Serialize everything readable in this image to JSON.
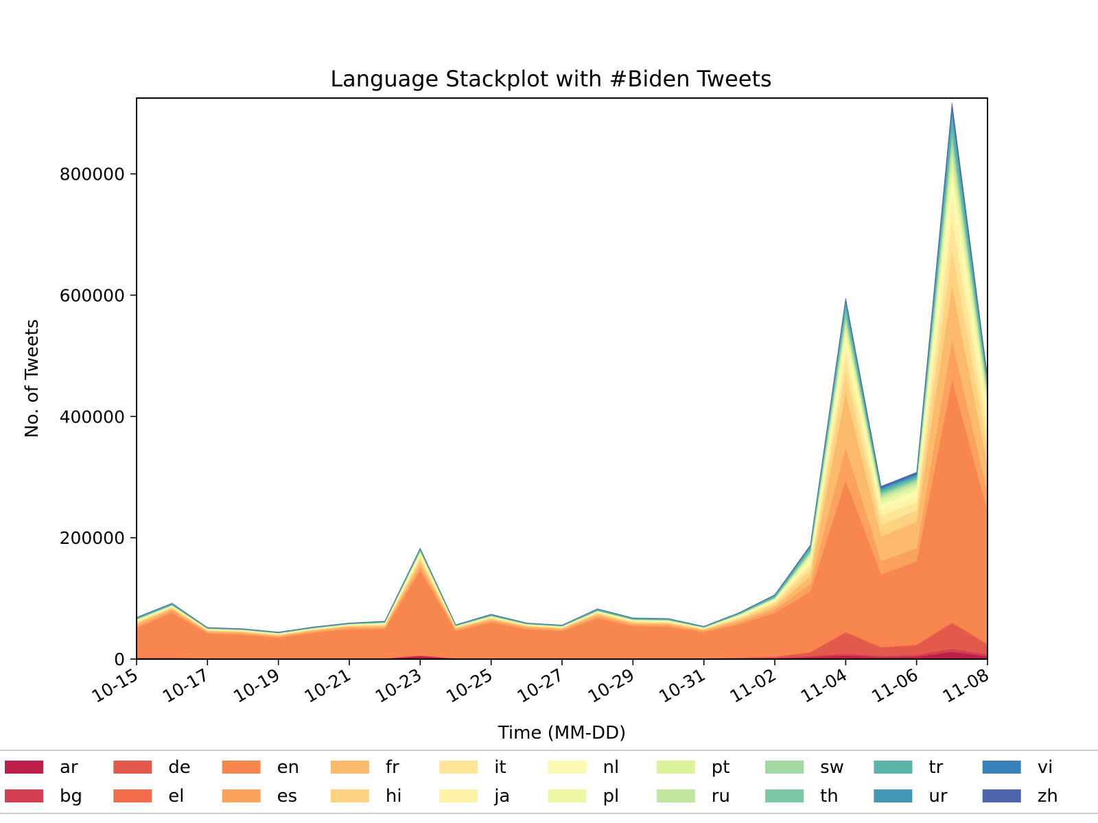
{
  "chart_data": {
    "type": "area",
    "stacked": true,
    "title": "Language Stackplot with #Biden Tweets",
    "xlabel": "Time (MM-DD)",
    "ylabel": "No. of Tweets",
    "x": [
      "10-15",
      "10-16",
      "10-17",
      "10-18",
      "10-19",
      "10-20",
      "10-21",
      "10-22",
      "10-23",
      "10-24",
      "10-25",
      "10-26",
      "10-27",
      "10-28",
      "10-29",
      "10-30",
      "10-31",
      "11-01",
      "11-02",
      "11-03",
      "11-04",
      "11-05",
      "11-06",
      "11-07",
      "11-08"
    ],
    "x_tick_labels": [
      "10-15",
      "10-17",
      "10-19",
      "10-21",
      "10-23",
      "10-25",
      "10-27",
      "10-29",
      "10-31",
      "11-02",
      "11-04",
      "11-06",
      "11-08"
    ],
    "y_ticks": [
      0,
      200000,
      400000,
      600000,
      800000
    ],
    "ylim": [
      0,
      925000
    ],
    "grid": false,
    "legend_position": "bottom",
    "colors": [
      "#bd1f4b",
      "#d53f52",
      "#e35a4c",
      "#f26b4b",
      "#f7864f",
      "#fba35d",
      "#fcbb6b",
      "#fdd281",
      "#fee496",
      "#fff3a8",
      "#fbfab0",
      "#eef8a4",
      "#dcf09d",
      "#c1e6a0",
      "#a1d8a4",
      "#7cc9a4",
      "#5ab4a7",
      "#4198b7",
      "#3981ba",
      "#4c64ad"
    ],
    "series": [
      {
        "name": "ar",
        "values": [
          1000,
          1000,
          500,
          500,
          500,
          500,
          500,
          500,
          5000,
          500,
          500,
          500,
          500,
          500,
          500,
          500,
          500,
          1000,
          1500,
          3000,
          6000,
          3000,
          4000,
          12000,
          5000
        ]
      },
      {
        "name": "bg",
        "values": [
          500,
          500,
          300,
          300,
          300,
          300,
          300,
          300,
          500,
          300,
          300,
          300,
          300,
          300,
          300,
          300,
          300,
          500,
          1000,
          2000,
          3000,
          2000,
          3000,
          5000,
          3000
        ]
      },
      {
        "name": "de",
        "values": [
          1000,
          1000,
          500,
          500,
          500,
          500,
          500,
          500,
          500,
          500,
          500,
          500,
          500,
          500,
          500,
          500,
          500,
          1000,
          1500,
          6000,
          35000,
          14000,
          16000,
          42000,
          16000
        ]
      },
      {
        "name": "el",
        "values": [
          200,
          200,
          200,
          200,
          200,
          200,
          200,
          200,
          200,
          200,
          200,
          200,
          200,
          200,
          200,
          200,
          200,
          200,
          200,
          500,
          1000,
          1000,
          1000,
          2000,
          1000
        ]
      },
      {
        "name": "en",
        "values": [
          49000,
          74000,
          41000,
          39000,
          34000,
          42000,
          48000,
          48000,
          140000,
          45000,
          59000,
          48000,
          45000,
          66000,
          53000,
          52000,
          43000,
          55000,
          72000,
          100000,
          250000,
          120000,
          137000,
          400000,
          220000
        ]
      },
      {
        "name": "es",
        "values": [
          4000,
          4000,
          2500,
          2500,
          2000,
          2500,
          3000,
          3000,
          8000,
          3000,
          3500,
          3000,
          2500,
          4000,
          3000,
          3000,
          2500,
          4000,
          6000,
          12000,
          55000,
          22000,
          22000,
          65000,
          30000
        ]
      },
      {
        "name": "fr",
        "values": [
          3000,
          2500,
          1500,
          1500,
          1500,
          1500,
          1500,
          2000,
          6000,
          1500,
          2000,
          1500,
          1500,
          2500,
          2000,
          2000,
          1500,
          3000,
          5000,
          13000,
          90000,
          40000,
          44000,
          90000,
          45000
        ]
      },
      {
        "name": "hi",
        "values": [
          2000,
          1500,
          1000,
          1000,
          1000,
          1000,
          1000,
          1500,
          5000,
          1000,
          1500,
          1000,
          1000,
          1500,
          1500,
          1500,
          1000,
          2500,
          4000,
          10000,
          35000,
          20000,
          18000,
          60000,
          30000
        ]
      },
      {
        "name": "it",
        "values": [
          1500,
          1500,
          1000,
          1000,
          1000,
          1000,
          1000,
          1500,
          4000,
          1000,
          1000,
          1000,
          1000,
          1500,
          1500,
          1500,
          1000,
          2000,
          3000,
          8000,
          25000,
          14000,
          14000,
          50000,
          25000
        ]
      },
      {
        "name": "ja",
        "values": [
          1000,
          800,
          500,
          500,
          500,
          500,
          500,
          800,
          3000,
          500,
          800,
          500,
          500,
          800,
          800,
          800,
          500,
          1500,
          2000,
          6000,
          20000,
          10000,
          10000,
          40000,
          20000
        ]
      },
      {
        "name": "nl",
        "values": [
          800,
          600,
          400,
          400,
          400,
          400,
          400,
          600,
          2000,
          400,
          600,
          400,
          400,
          600,
          600,
          600,
          400,
          1000,
          1500,
          5000,
          15000,
          8000,
          8000,
          30000,
          15000
        ]
      },
      {
        "name": "pl",
        "values": [
          600,
          500,
          300,
          300,
          300,
          300,
          300,
          500,
          1500,
          300,
          500,
          300,
          300,
          500,
          500,
          500,
          300,
          800,
          1200,
          4000,
          10000,
          6000,
          6000,
          20000,
          10000
        ]
      },
      {
        "name": "pt",
        "values": [
          500,
          400,
          300,
          300,
          300,
          300,
          300,
          400,
          1500,
          300,
          400,
          300,
          300,
          400,
          400,
          400,
          300,
          700,
          1000,
          3000,
          9000,
          5000,
          5000,
          18000,
          9000
        ]
      },
      {
        "name": "ru",
        "values": [
          400,
          300,
          200,
          200,
          200,
          200,
          200,
          300,
          1000,
          200,
          300,
          200,
          200,
          300,
          300,
          300,
          200,
          500,
          800,
          2500,
          7000,
          4000,
          4000,
          15000,
          7000
        ]
      },
      {
        "name": "sw",
        "values": [
          300,
          300,
          200,
          200,
          200,
          200,
          200,
          300,
          800,
          200,
          300,
          200,
          200,
          300,
          300,
          300,
          200,
          400,
          600,
          2000,
          6000,
          3000,
          3000,
          12000,
          6000
        ]
      },
      {
        "name": "th",
        "values": [
          300,
          300,
          200,
          200,
          200,
          200,
          200,
          300,
          700,
          200,
          300,
          200,
          200,
          300,
          300,
          300,
          200,
          400,
          600,
          3000,
          8000,
          3000,
          3000,
          12000,
          6000
        ]
      },
      {
        "name": "tr",
        "values": [
          2000,
          2000,
          1000,
          1000,
          1000,
          1000,
          1000,
          1000,
          2000,
          1000,
          1500,
          1000,
          1000,
          2000,
          1500,
          1500,
          1000,
          1500,
          3000,
          5000,
          12000,
          4000,
          4000,
          25000,
          10000
        ]
      },
      {
        "name": "ur",
        "values": [
          300,
          300,
          200,
          200,
          200,
          200,
          200,
          300,
          500,
          200,
          300,
          200,
          200,
          300,
          300,
          300,
          200,
          300,
          500,
          1000,
          3000,
          2000,
          2000,
          8000,
          3000
        ]
      },
      {
        "name": "vi",
        "values": [
          200,
          200,
          100,
          100,
          100,
          100,
          100,
          200,
          300,
          100,
          200,
          100,
          100,
          200,
          200,
          200,
          100,
          200,
          300,
          800,
          2000,
          2000,
          2000,
          5000,
          2000
        ]
      },
      {
        "name": "zh",
        "values": [
          300,
          300,
          200,
          200,
          200,
          200,
          200,
          300,
          500,
          200,
          300,
          200,
          200,
          300,
          300,
          300,
          200,
          300,
          500,
          1000,
          3000,
          2000,
          2000,
          6000,
          3000
        ]
      }
    ]
  }
}
